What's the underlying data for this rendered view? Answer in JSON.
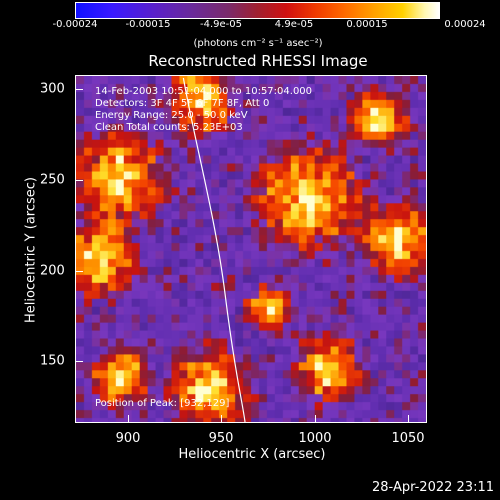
{
  "colorbar": {
    "ticks": [
      "-0.00024",
      "-0.00015",
      "-4.9e-05",
      "4.9e-05",
      "0.00015",
      "0.00024"
    ],
    "unit_label": "(photons cm⁻² s⁻¹ asec⁻²)"
  },
  "title": "Reconstructed RHESSI Image",
  "info": {
    "line1": "14-Feb-2003 10:51:04.000 to 10:57:04.000",
    "line2": "Detectors: 3F 4F 5F 6F 7F 8F, Att 0",
    "line3": "Energy Range: 25.0 - 50.0 keV",
    "line4": "Clean     Total counts: 5.23E+03",
    "peak": "Position of Peak: [932,129]"
  },
  "axes": {
    "xlabel": "Heliocentric X (arcsec)",
    "ylabel": "Heliocentric Y (arcsec)",
    "xticks": [
      "900",
      "950",
      "1000",
      "1050"
    ],
    "yticks": [
      "300",
      "250",
      "200",
      "150"
    ],
    "xlim": [
      870,
      1062
    ],
    "ylim": [
      115,
      308
    ]
  },
  "timestamp": "28-Apr-2022 23:11",
  "colors": {
    "background": "#000000",
    "limb": "#ffffff",
    "axis": "#ffffff"
  }
}
